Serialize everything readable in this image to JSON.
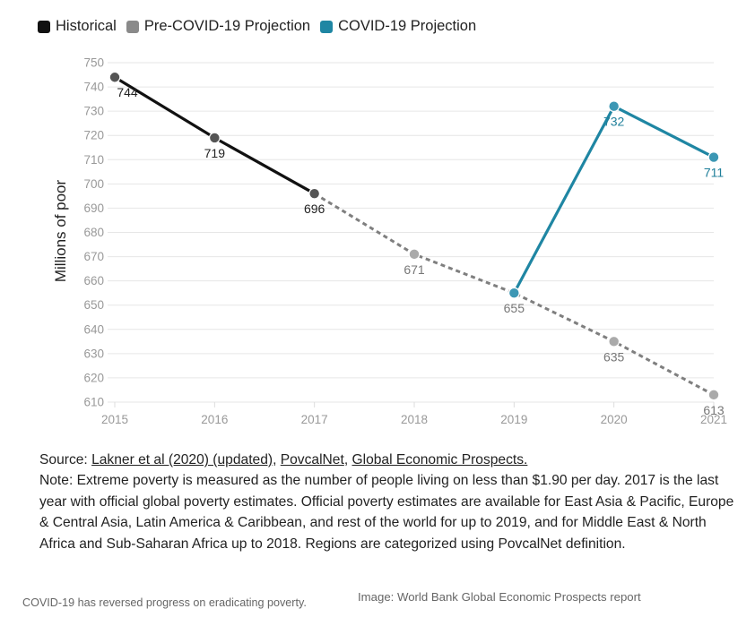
{
  "chart_data": {
    "type": "line",
    "title": "",
    "xlabel": "",
    "ylabel": "Millions of poor",
    "x": [
      2015,
      2016,
      2017,
      2018,
      2019,
      2020,
      2021
    ],
    "xticks": [
      "2015",
      "2016",
      "2017",
      "2018",
      "2019",
      "2020",
      "2021"
    ],
    "yticks": [
      "610",
      "620",
      "630",
      "640",
      "650",
      "660",
      "670",
      "680",
      "690",
      "700",
      "710",
      "720",
      "730",
      "740",
      "750"
    ],
    "ylim": [
      610,
      750
    ],
    "grid": true,
    "legend_placement": "top-left",
    "series": [
      {
        "name": "Historical",
        "color": "#111111",
        "style": "solid",
        "points": [
          {
            "x": 2015,
            "y": 744,
            "label": "744"
          },
          {
            "x": 2016,
            "y": 719,
            "label": "719"
          },
          {
            "x": 2017,
            "y": 696,
            "label": "696"
          }
        ]
      },
      {
        "name": "Pre-COVID-19 Projection",
        "color": "#7f7f7f",
        "style": "dashed",
        "points": [
          {
            "x": 2017,
            "y": 696,
            "label": ""
          },
          {
            "x": 2018,
            "y": 671,
            "label": "671"
          },
          {
            "x": 2019,
            "y": 655,
            "label": "655"
          },
          {
            "x": 2020,
            "y": 635,
            "label": "635"
          },
          {
            "x": 2021,
            "y": 613,
            "label": "613"
          }
        ]
      },
      {
        "name": "COVID-19 Projection",
        "color": "#1f86a3",
        "style": "solid",
        "points": [
          {
            "x": 2019,
            "y": 655,
            "label": ""
          },
          {
            "x": 2020,
            "y": 732,
            "label": "732"
          },
          {
            "x": 2021,
            "y": 711,
            "label": "711"
          }
        ]
      }
    ]
  },
  "notes": {
    "source_prefix": "Source: ",
    "source_link_1": "Lakner et al (2020) (updated)",
    "sep_1": ", ",
    "source_link_2": "PovcalNet",
    "sep_2": ", ",
    "source_link_3": "Global Economic Prospects.",
    "note": "Note: Extreme poverty is measured as the number of people living on less than $1.90 per day. 2017 is the last year with official global poverty estimates. Official poverty estimates are available for East Asia & Pacific, Europe & Central Asia, Latin America & Caribbean, and rest of the world for up to 2019, and for Middle East & North Africa and Sub-Saharan Africa up to 2018. Regions are categorized using PovcalNet definition."
  },
  "caption": "COVID-19 has reversed progress on eradicating poverty.",
  "credit": "Image: World Bank Global Economic Prospects report"
}
